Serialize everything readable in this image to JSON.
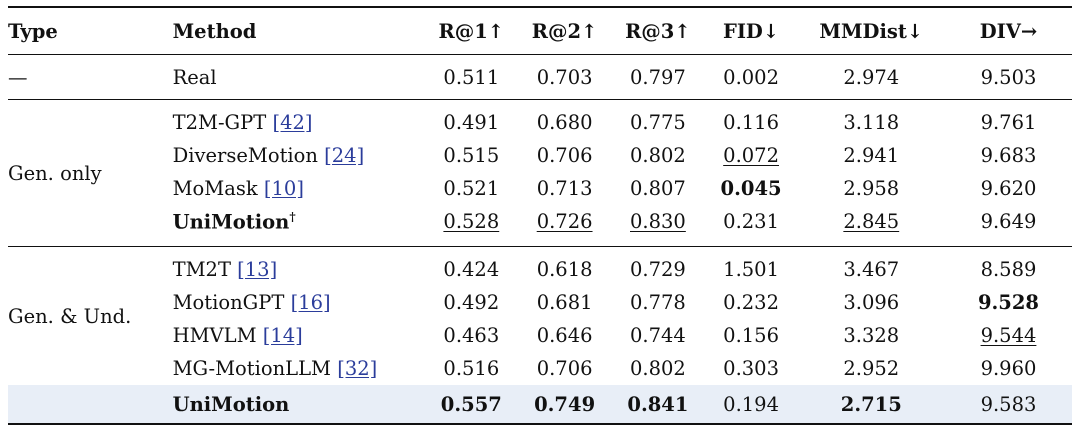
{
  "columns": [
    "Type",
    "Method",
    "R@1↑",
    "R@2↑",
    "R@3↑",
    "FID↓",
    "MMDist↓",
    "DIV→"
  ],
  "real": {
    "type": "—",
    "method": "Real",
    "values": [
      "0.511",
      "0.703",
      "0.797",
      "0.002",
      "2.974",
      "9.503"
    ]
  },
  "groups": [
    {
      "type": "Gen. only",
      "rows": [
        {
          "method": "T2M-GPT",
          "ref": "[42]",
          "values": [
            "0.491",
            "0.680",
            "0.775",
            "0.116",
            "3.118",
            "9.761"
          ]
        },
        {
          "method": "DiverseMotion",
          "ref": "[24]",
          "values": [
            "0.515",
            "0.706",
            "0.802",
            "0.072",
            "2.941",
            "9.683"
          ]
        },
        {
          "method": "MoMask",
          "ref": "[10]",
          "values": [
            "0.521",
            "0.713",
            "0.807",
            "0.045",
            "2.958",
            "9.620"
          ]
        },
        {
          "method": "UniMotion",
          "sup": "†",
          "values": [
            "0.528",
            "0.726",
            "0.830",
            "0.231",
            "2.845",
            "9.649"
          ]
        }
      ]
    },
    {
      "type": "Gen. & Und.",
      "rows": [
        {
          "method": "TM2T",
          "ref": "[13]",
          "values": [
            "0.424",
            "0.618",
            "0.729",
            "1.501",
            "3.467",
            "8.589"
          ]
        },
        {
          "method": "MotionGPT",
          "ref": "[16]",
          "values": [
            "0.492",
            "0.681",
            "0.778",
            "0.232",
            "3.096",
            "9.528"
          ]
        },
        {
          "method": "HMVLM",
          "ref": "[14]",
          "values": [
            "0.463",
            "0.646",
            "0.744",
            "0.156",
            "3.328",
            "9.544"
          ]
        },
        {
          "method": "MG-MotionLLM",
          "ref": "[32]",
          "values": [
            "0.516",
            "0.706",
            "0.802",
            "0.303",
            "2.952",
            "9.960"
          ]
        },
        {
          "method": "UniMotion",
          "values": [
            "0.557",
            "0.749",
            "0.841",
            "0.194",
            "2.715",
            "9.583"
          ]
        }
      ]
    }
  ]
}
